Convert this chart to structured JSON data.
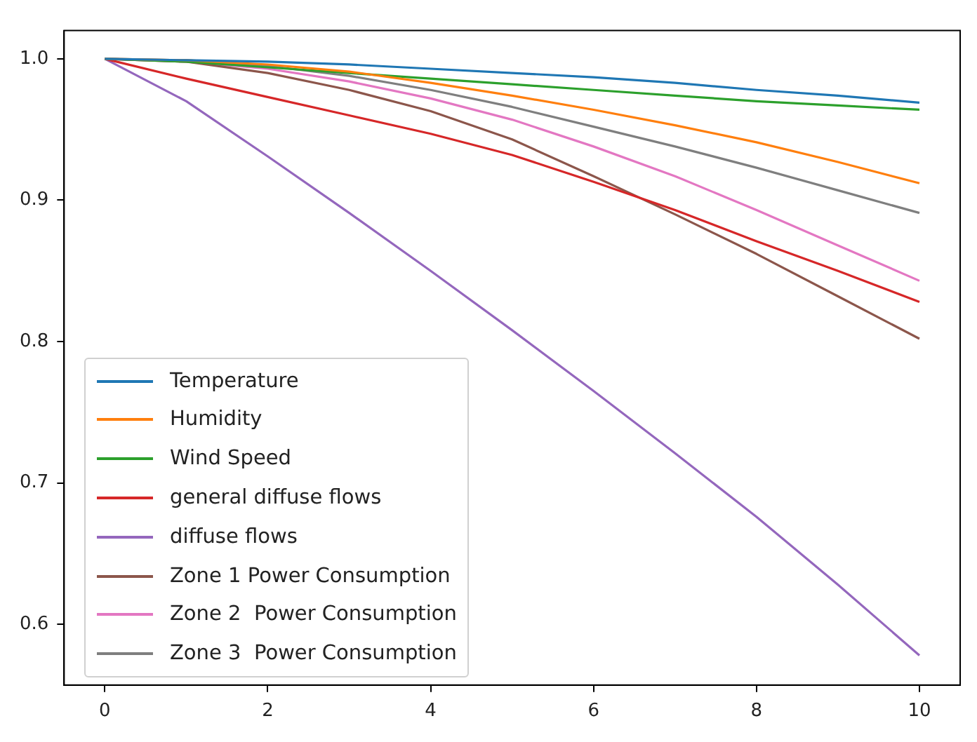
{
  "chart_data": {
    "type": "line",
    "x": [
      0,
      1,
      2,
      3,
      4,
      5,
      6,
      7,
      8,
      9,
      10
    ],
    "xlim": [
      -0.5,
      10.5
    ],
    "xticks": [
      0,
      2,
      4,
      6,
      8,
      10
    ],
    "ylim": [
      0.557,
      1.02
    ],
    "yticks": [
      {
        "value": 0.6,
        "label": "0.6"
      },
      {
        "value": 0.7,
        "label": "0.7"
      },
      {
        "value": 0.8,
        "label": "0.8"
      },
      {
        "value": 0.9,
        "label": "0.9"
      },
      {
        "value": 1.0,
        "label": "1.0"
      }
    ],
    "grid": false,
    "legend": "bottom left",
    "marker": "none",
    "line_style": "solid",
    "series": [
      {
        "name": "Temperature",
        "color": "#1f77b4",
        "values": [
          1,
          0.999,
          0.998,
          0.996,
          0.993,
          0.99,
          0.987,
          0.983,
          0.978,
          0.974,
          0.969
        ]
      },
      {
        "name": "Humidity",
        "color": "#ff7f0e",
        "values": [
          1,
          0.999,
          0.996,
          0.991,
          0.983,
          0.974,
          0.964,
          0.953,
          0.941,
          0.927,
          0.912
        ]
      },
      {
        "name": "Wind Speed",
        "color": "#2ca02c",
        "values": [
          1,
          0.998,
          0.994,
          0.99,
          0.986,
          0.982,
          0.978,
          0.974,
          0.97,
          0.967,
          0.964
        ]
      },
      {
        "name": "general diffuse flows",
        "color": "#d62728",
        "values": [
          1,
          0.986,
          0.973,
          0.96,
          0.947,
          0.932,
          0.913,
          0.893,
          0.871,
          0.85,
          0.828
        ]
      },
      {
        "name": "diffuse flows",
        "color": "#9467bd",
        "values": [
          1,
          0.97,
          0.931,
          0.891,
          0.85,
          0.808,
          0.765,
          0.721,
          0.676,
          0.628,
          0.578
        ]
      },
      {
        "name": "Zone 1 Power Consumption",
        "color": "#8c564b",
        "values": [
          1,
          0.998,
          0.99,
          0.978,
          0.963,
          0.943,
          0.917,
          0.89,
          0.862,
          0.832,
          0.802
        ]
      },
      {
        "name": "Zone 2  Power Consumption",
        "color": "#e377c2",
        "values": [
          1,
          0.998,
          0.993,
          0.984,
          0.972,
          0.957,
          0.938,
          0.917,
          0.893,
          0.868,
          0.843
        ]
      },
      {
        "name": "Zone 3  Power Consumption",
        "color": "#7f7f7f",
        "values": [
          1,
          0.999,
          0.995,
          0.988,
          0.978,
          0.966,
          0.952,
          0.938,
          0.923,
          0.907,
          0.891
        ]
      }
    ]
  }
}
